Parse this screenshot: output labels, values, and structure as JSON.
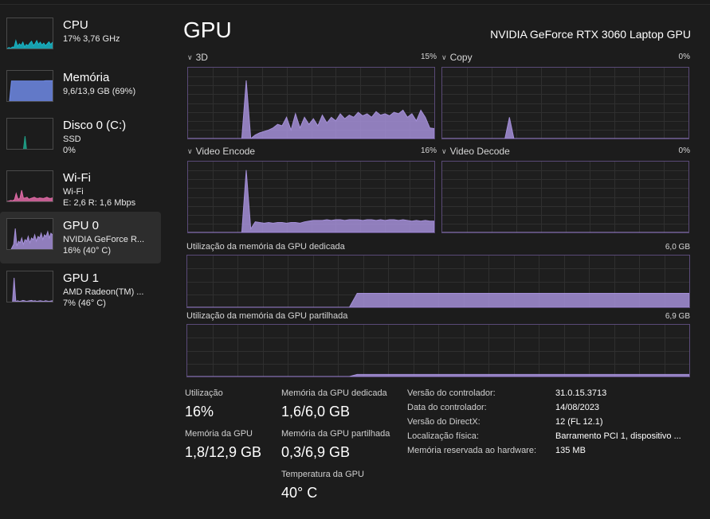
{
  "colors": {
    "gpu_purple": "#a48fd8",
    "cpu_teal": "#17b6c7",
    "memory_blue": "#6f8ae6",
    "disk_green": "#1fa38a",
    "wifi_pink": "#e06aa6"
  },
  "sidebar": {
    "items": [
      {
        "title": "CPU",
        "line1": "17%  3,76 GHz",
        "line2": "",
        "icon": "cpu-graph"
      },
      {
        "title": "Memória",
        "line1": "9,6/13,9 GB (69%)",
        "line2": "",
        "icon": "memory-graph"
      },
      {
        "title": "Disco 0 (C:)",
        "line1": "SSD",
        "line2": "0%",
        "icon": "disk-graph"
      },
      {
        "title": "Wi-Fi",
        "line1": "Wi-Fi",
        "line2": "E: 2,6  R: 1,6 Mbps",
        "icon": "wifi-graph"
      },
      {
        "title": "GPU 0",
        "line1": "NVIDIA GeForce R...",
        "line2": "16%  (40° C)",
        "icon": "gpu0-graph",
        "selected": true
      },
      {
        "title": "GPU 1",
        "line1": "AMD Radeon(TM) ...",
        "line2": "7%  (46° C)",
        "icon": "gpu1-graph"
      }
    ]
  },
  "header": {
    "title": "GPU",
    "device_name": "NVIDIA GeForce RTX 3060 Laptop GPU"
  },
  "engines": [
    {
      "label": "3D",
      "value": "15%"
    },
    {
      "label": "Copy",
      "value": "0%"
    },
    {
      "label": "Video Encode",
      "value": "16%"
    },
    {
      "label": "Video Decode",
      "value": "0%"
    }
  ],
  "memory_graphs": {
    "dedicated": {
      "label": "Utilização da memória da GPU dedicada",
      "max": "6,0 GB"
    },
    "shared": {
      "label": "Utilização da memória da GPU partilhada",
      "max": "6,9 GB"
    }
  },
  "stats": {
    "utilization": {
      "label": "Utilização",
      "value": "16%"
    },
    "gpu_memory": {
      "label": "Memória da GPU",
      "value": "1,8/12,9 GB"
    },
    "dedicated_memory": {
      "label": "Memória da GPU dedicada",
      "value": "1,6/6,0 GB"
    },
    "shared_memory": {
      "label": "Memória da GPU partilhada",
      "value": "0,3/6,9 GB"
    },
    "temperature": {
      "label": "Temperatura da GPU",
      "value": "40° C"
    }
  },
  "info": [
    {
      "key": "Versão do controlador:",
      "value": "31.0.15.3713"
    },
    {
      "key": "Data do controlador:",
      "value": "14/08/2023"
    },
    {
      "key": "Versão do DirectX:",
      "value": "12 (FL 12.1)"
    },
    {
      "key": "Localização física:",
      "value": "Barramento PCI 1, dispositivo ..."
    },
    {
      "key": "Memória reservada ao hardware:",
      "value": "135 MB"
    }
  ],
  "series": {
    "engine_3d": [
      0,
      0,
      0,
      0,
      0,
      0,
      0,
      0,
      0,
      0,
      0,
      0,
      0,
      82,
      0,
      5,
      8,
      10,
      12,
      15,
      20,
      18,
      30,
      12,
      35,
      15,
      30,
      20,
      28,
      18,
      33,
      22,
      30,
      25,
      35,
      28,
      33,
      30,
      37,
      32,
      35,
      30,
      38,
      33,
      35,
      32,
      37,
      35,
      40,
      30,
      35,
      25,
      40,
      30,
      15,
      14
    ],
    "engine_copy": [
      0,
      0,
      0,
      0,
      0,
      0,
      0,
      0,
      0,
      0,
      0,
      0,
      0,
      0,
      0,
      30,
      0,
      0,
      0,
      0,
      0,
      0,
      0,
      0,
      0,
      0,
      0,
      0,
      0,
      0,
      0,
      0,
      0,
      0,
      0,
      0,
      0,
      0,
      0,
      0,
      0,
      0,
      0,
      0,
      0,
      0,
      0,
      0,
      0,
      0,
      0,
      0,
      0,
      0,
      0,
      0
    ],
    "engine_encode": [
      0,
      0,
      0,
      0,
      0,
      0,
      0,
      0,
      0,
      0,
      0,
      0,
      0,
      88,
      5,
      15,
      14,
      13,
      14,
      13,
      14,
      14,
      13,
      14,
      14,
      13,
      15,
      16,
      17,
      17,
      17,
      18,
      17,
      18,
      18,
      17,
      18,
      18,
      18,
      17,
      18,
      18,
      17,
      18,
      17,
      18,
      18,
      17,
      18,
      17,
      16,
      17,
      16,
      17,
      16,
      16
    ],
    "dedicated": [
      0,
      0,
      0,
      0,
      0,
      0,
      0,
      0,
      0,
      0,
      0,
      0,
      0,
      0,
      0,
      0,
      0,
      0,
      0,
      0,
      0,
      0,
      27,
      27,
      27,
      27,
      27,
      27,
      27,
      27,
      27,
      27,
      27,
      27,
      27,
      27,
      27,
      27,
      27,
      27,
      27,
      27,
      27,
      27,
      27,
      27,
      27,
      27,
      27,
      27,
      27,
      27,
      27,
      27,
      27,
      27,
      27,
      27,
      27,
      27,
      27,
      27,
      27,
      27,
      27,
      27
    ],
    "shared": [
      0,
      0,
      0,
      0,
      0,
      0,
      0,
      0,
      0,
      0,
      0,
      0,
      0,
      0,
      0,
      0,
      0,
      0,
      0,
      0,
      0,
      0,
      4,
      4,
      4,
      4,
      4,
      4,
      4,
      4,
      4,
      4,
      4,
      4,
      4,
      4,
      4,
      4,
      4,
      4,
      4,
      4,
      4,
      4,
      4,
      4,
      4,
      4,
      4,
      4,
      4,
      4,
      4,
      4,
      4,
      4,
      4,
      4,
      4,
      4,
      4,
      4,
      4,
      4,
      4,
      4
    ]
  }
}
